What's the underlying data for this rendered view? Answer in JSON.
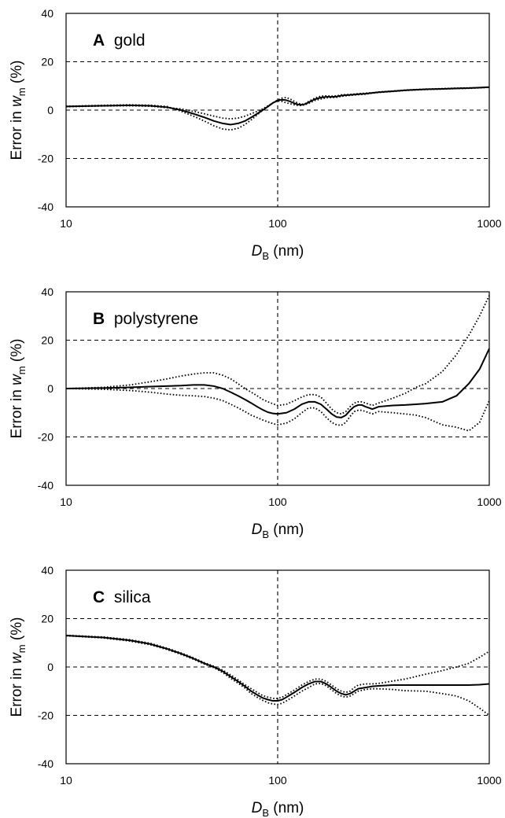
{
  "chart_data": [
    {
      "type": "line",
      "panel_letter": "A",
      "panel_name": "gold",
      "xlabel_main": "D",
      "xlabel_sub": "B",
      "xlabel_unit": "(nm)",
      "ylabel_prefix": "Error in ",
      "ylabel_var": "w",
      "ylabel_sub": "m",
      "ylabel_unit": "(%)",
      "xscale": "log",
      "xlim": [
        10,
        1000
      ],
      "ylim": [
        -40,
        40
      ],
      "x_ticks": [
        "10",
        "100",
        "1000"
      ],
      "y_ticks": [
        "40",
        "20",
        "0",
        "-20",
        "-40"
      ],
      "reference_lines": {
        "y": [
          20,
          0,
          -20
        ],
        "x": [
          100
        ]
      },
      "series": [
        {
          "style": "solid",
          "x": [
            10,
            15,
            20,
            25,
            30,
            35,
            40,
            45,
            50,
            55,
            60,
            65,
            70,
            75,
            80,
            85,
            90,
            95,
            100,
            105,
            110,
            115,
            120,
            125,
            130,
            135,
            140,
            150,
            160,
            170,
            180,
            190,
            200,
            220,
            240,
            260,
            280,
            300,
            350,
            400,
            500,
            600,
            700,
            800,
            900,
            1000
          ],
          "y": [
            1.5,
            1.8,
            2,
            1.8,
            1.2,
            0,
            -1.5,
            -3,
            -4.5,
            -5.5,
            -6,
            -5.5,
            -4.5,
            -3,
            -1.5,
            0,
            1.5,
            3,
            4,
            4.3,
            4.1,
            3.5,
            2.8,
            2.3,
            2.2,
            2.5,
            3.2,
            4.5,
            5.2,
            5.5,
            5.5,
            5.6,
            6,
            6.3,
            6.6,
            6.8,
            7.1,
            7.4,
            7.8,
            8.2,
            8.6,
            8.8,
            9,
            9.1,
            9.3,
            9.5
          ]
        },
        {
          "style": "dotted",
          "x": [
            10,
            15,
            20,
            25,
            30,
            35,
            40,
            45,
            50,
            55,
            60,
            65,
            70,
            75,
            80,
            85,
            90,
            95,
            100,
            105,
            110,
            115,
            120,
            125,
            130,
            135,
            140,
            150,
            160,
            170,
            180,
            190,
            200,
            220,
            240,
            260,
            280,
            300,
            350,
            400,
            500,
            600,
            700,
            800,
            900,
            1000
          ],
          "y": [
            1.6,
            2,
            2.2,
            2,
            1.5,
            -0.5,
            -2.5,
            -4.5,
            -6.5,
            -7.8,
            -8.2,
            -7.5,
            -6,
            -4,
            -2,
            0,
            1.5,
            3,
            4.2,
            5,
            5.2,
            4.5,
            3.6,
            2.8,
            2.4,
            2.7,
            3.6,
            5,
            5.8,
            5.9,
            5.8,
            5.9,
            6.3,
            6.5,
            6.8,
            7,
            7.2,
            7.5,
            7.9,
            8.3,
            8.7,
            8.9,
            9.1,
            9.2,
            9.3,
            9.5
          ]
        },
        {
          "style": "dotted",
          "x": [
            10,
            15,
            20,
            25,
            30,
            35,
            40,
            45,
            50,
            55,
            60,
            65,
            70,
            75,
            80,
            85,
            90,
            95,
            100,
            105,
            110,
            115,
            120,
            125,
            130,
            135,
            140,
            150,
            160,
            170,
            180,
            190,
            200,
            220,
            240,
            260,
            280,
            300,
            350,
            400,
            500,
            600,
            700,
            800,
            900,
            1000
          ],
          "y": [
            1.4,
            1.7,
            1.8,
            1.6,
            1,
            0.5,
            -0.5,
            -1.5,
            -2.5,
            -3.3,
            -3.6,
            -3.3,
            -2.5,
            -1.5,
            -0.5,
            0.5,
            1.8,
            3,
            3.8,
            3.6,
            3,
            2.6,
            2.2,
            1.9,
            1.9,
            2.3,
            2.8,
            4,
            4.6,
            5.1,
            5.2,
            5.3,
            5.7,
            6.1,
            6.4,
            6.6,
            7,
            7.3,
            7.7,
            8.1,
            8.5,
            8.7,
            8.9,
            9,
            9.2,
            9.4
          ]
        }
      ]
    },
    {
      "type": "line",
      "panel_letter": "B",
      "panel_name": "polystyrene",
      "xlabel_main": "D",
      "xlabel_sub": "B",
      "xlabel_unit": "(nm)",
      "ylabel_prefix": "Error in ",
      "ylabel_var": "w",
      "ylabel_sub": "m",
      "ylabel_unit": "(%)",
      "xscale": "log",
      "xlim": [
        10,
        1000
      ],
      "ylim": [
        -40,
        40
      ],
      "x_ticks": [
        "10",
        "100",
        "1000"
      ],
      "y_ticks": [
        "40",
        "20",
        "0",
        "-20",
        "-40"
      ],
      "reference_lines": {
        "y": [
          20,
          0,
          -20
        ],
        "x": [
          100
        ]
      },
      "series": [
        {
          "style": "solid",
          "x": [
            10,
            15,
            20,
            25,
            30,
            35,
            40,
            45,
            50,
            55,
            60,
            65,
            70,
            75,
            80,
            85,
            90,
            95,
            100,
            110,
            120,
            130,
            140,
            150,
            160,
            170,
            180,
            190,
            200,
            210,
            220,
            230,
            240,
            250,
            260,
            270,
            280,
            300,
            350,
            400,
            450,
            500,
            600,
            700,
            800,
            900,
            1000
          ],
          "y": [
            0,
            0.2,
            0.5,
            0.8,
            1,
            1.2,
            1.5,
            1.5,
            1,
            0,
            -1.5,
            -3,
            -4.5,
            -6,
            -7.5,
            -8.8,
            -9.8,
            -10.3,
            -10.5,
            -10,
            -8.5,
            -6.5,
            -5.5,
            -5.5,
            -6.5,
            -8.5,
            -10.5,
            -11.8,
            -12,
            -11,
            -9,
            -7.5,
            -6.8,
            -6.8,
            -7.5,
            -8,
            -8.5,
            -7.5,
            -7,
            -6.8,
            -6.5,
            -6.2,
            -5.5,
            -3,
            2,
            8,
            16.5
          ]
        },
        {
          "style": "dotted",
          "x": [
            10,
            15,
            20,
            25,
            30,
            35,
            40,
            45,
            50,
            55,
            60,
            65,
            70,
            75,
            80,
            85,
            90,
            95,
            100,
            110,
            120,
            130,
            140,
            150,
            160,
            170,
            180,
            190,
            200,
            210,
            220,
            230,
            240,
            250,
            260,
            270,
            280,
            300,
            350,
            400,
            450,
            500,
            600,
            700,
            800,
            900,
            1000
          ],
          "y": [
            0,
            0.5,
            1.5,
            2.8,
            4,
            5.2,
            6,
            6.5,
            6.5,
            5.5,
            4,
            2,
            0,
            -1.5,
            -3,
            -4.5,
            -5.5,
            -6.3,
            -7,
            -6.5,
            -5,
            -3.5,
            -2.5,
            -2.5,
            -3.5,
            -6,
            -8.5,
            -10,
            -10.5,
            -9.5,
            -7.5,
            -6,
            -5.5,
            -5.5,
            -6,
            -6.5,
            -7,
            -6,
            -4,
            -2,
            0.5,
            2,
            7,
            14,
            22,
            30,
            38.5
          ]
        },
        {
          "style": "dotted",
          "x": [
            10,
            15,
            20,
            25,
            30,
            35,
            40,
            45,
            50,
            55,
            60,
            65,
            70,
            75,
            80,
            85,
            90,
            95,
            100,
            110,
            120,
            130,
            140,
            150,
            160,
            170,
            180,
            190,
            200,
            210,
            220,
            230,
            240,
            250,
            260,
            270,
            280,
            300,
            350,
            400,
            450,
            500,
            600,
            700,
            800,
            900,
            1000
          ],
          "y": [
            0,
            -0.3,
            -0.8,
            -1.5,
            -2.3,
            -2.8,
            -3,
            -3.3,
            -4,
            -5,
            -6.5,
            -8,
            -9.5,
            -11,
            -12,
            -13,
            -13.8,
            -14.5,
            -15,
            -14.3,
            -12.5,
            -10,
            -8,
            -8,
            -9.5,
            -12,
            -14,
            -15,
            -15.2,
            -14,
            -11.5,
            -9.5,
            -9,
            -9,
            -9.5,
            -10,
            -10.5,
            -9.5,
            -10,
            -10.5,
            -11,
            -12,
            -15,
            -16,
            -17.5,
            -14,
            -5
          ]
        }
      ]
    },
    {
      "type": "line",
      "panel_letter": "C",
      "panel_name": "silica",
      "xlabel_main": "D",
      "xlabel_sub": "B",
      "xlabel_unit": "(nm)",
      "ylabel_prefix": "Error in ",
      "ylabel_var": "w",
      "ylabel_sub": "m",
      "ylabel_unit": "(%)",
      "xscale": "log",
      "xlim": [
        10,
        1000
      ],
      "ylim": [
        -40,
        40
      ],
      "x_ticks": [
        "10",
        "100",
        "1000"
      ],
      "y_ticks": [
        "40",
        "20",
        "0",
        "-20",
        "-40"
      ],
      "reference_lines": {
        "y": [
          20,
          0,
          -20
        ],
        "x": [
          100
        ]
      },
      "series": [
        {
          "style": "solid",
          "x": [
            10,
            15,
            20,
            25,
            30,
            35,
            40,
            45,
            50,
            55,
            60,
            65,
            70,
            75,
            80,
            85,
            90,
            95,
            100,
            105,
            110,
            120,
            130,
            140,
            150,
            160,
            170,
            180,
            190,
            200,
            210,
            220,
            230,
            240,
            260,
            280,
            300,
            350,
            400,
            500,
            600,
            700,
            800,
            900,
            1000
          ],
          "y": [
            13,
            12.2,
            11,
            9.5,
            7.5,
            5.5,
            3.5,
            1.5,
            0,
            -1.8,
            -4,
            -6,
            -8,
            -10,
            -11.5,
            -12.8,
            -13.5,
            -14,
            -14,
            -13.5,
            -12.5,
            -10.5,
            -8.5,
            -7,
            -6,
            -6,
            -7,
            -8.5,
            -10,
            -11,
            -11.5,
            -11,
            -10,
            -9,
            -8.5,
            -8,
            -7.8,
            -7.5,
            -7.5,
            -7.5,
            -7.5,
            -7.5,
            -7.5,
            -7.3,
            -7
          ]
        },
        {
          "style": "dotted",
          "x": [
            10,
            15,
            20,
            25,
            30,
            35,
            40,
            45,
            50,
            55,
            60,
            65,
            70,
            75,
            80,
            85,
            90,
            95,
            100,
            105,
            110,
            120,
            130,
            140,
            150,
            160,
            170,
            180,
            190,
            200,
            210,
            220,
            230,
            240,
            260,
            280,
            300,
            350,
            400,
            500,
            600,
            700,
            800,
            900,
            1000
          ],
          "y": [
            13.1,
            12.4,
            11.3,
            9.8,
            7.8,
            5.8,
            3.8,
            1.8,
            0.3,
            -1.3,
            -3.3,
            -5.3,
            -7.3,
            -9,
            -10.5,
            -11.8,
            -12.5,
            -13,
            -13,
            -12.5,
            -11.5,
            -9.5,
            -7.5,
            -6,
            -5,
            -5,
            -6,
            -7.5,
            -9,
            -10,
            -10.5,
            -10,
            -8.5,
            -7.5,
            -7,
            -7,
            -6.8,
            -5.8,
            -5,
            -3,
            -1.5,
            0,
            1.5,
            4,
            6.5
          ]
        },
        {
          "style": "dotted",
          "x": [
            10,
            15,
            20,
            25,
            30,
            35,
            40,
            45,
            50,
            55,
            60,
            65,
            70,
            75,
            80,
            85,
            90,
            95,
            100,
            105,
            110,
            120,
            130,
            140,
            150,
            160,
            170,
            180,
            190,
            200,
            210,
            220,
            230,
            240,
            260,
            280,
            300,
            350,
            400,
            500,
            600,
            700,
            800,
            900,
            1000
          ],
          "y": [
            12.9,
            12,
            10.7,
            9.2,
            7.2,
            5.2,
            3.2,
            1.2,
            -0.3,
            -2.3,
            -4.7,
            -6.7,
            -8.7,
            -11,
            -12.5,
            -13.8,
            -14.8,
            -15.3,
            -15.5,
            -15,
            -14,
            -12,
            -10,
            -8.5,
            -7,
            -6.8,
            -7.8,
            -9.5,
            -11,
            -12,
            -12.5,
            -12,
            -11,
            -10,
            -9.3,
            -9,
            -9,
            -9.3,
            -9.8,
            -10,
            -11,
            -12,
            -14,
            -17,
            -20
          ]
        }
      ]
    }
  ]
}
